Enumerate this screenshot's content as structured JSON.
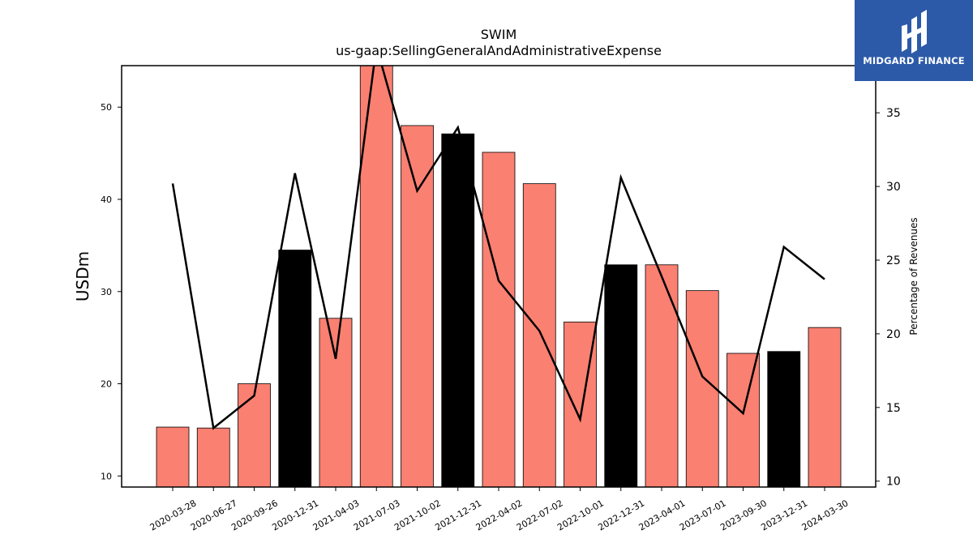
{
  "chart_data": {
    "type": "bar",
    "title": "SWIM",
    "subtitle": "us-gaap:SellingGeneralAndAdministrativeExpense",
    "ylabel": "USDm",
    "y2label": "Percentage of Revenues",
    "ylim": [
      8.8,
      54.5
    ],
    "y2lim": [
      9.6,
      38.2
    ],
    "yticks": [
      10,
      20,
      30,
      40,
      50
    ],
    "y2ticks": [
      10,
      15,
      20,
      25,
      30,
      35
    ],
    "categories": [
      "2020-03-28",
      "2020-06-27",
      "2020-09-26",
      "2020-12-31",
      "2021-04-03",
      "2021-07-03",
      "2021-10-02",
      "2021-12-31",
      "2022-04-02",
      "2022-07-02",
      "2022-10-01",
      "2022-12-31",
      "2023-04-01",
      "2023-07-01",
      "2023-09-30",
      "2023-12-31",
      "2024-03-30"
    ],
    "series": [
      {
        "type": "bar",
        "values": [
          15.3,
          15.2,
          20.0,
          34.5,
          27.1,
          55.0,
          48.0,
          47.1,
          45.1,
          41.7,
          26.7,
          32.9,
          32.9,
          30.1,
          23.3,
          23.5,
          26.1
        ],
        "highlight_color": "#000000",
        "base_color": "#fa8072",
        "highlighted": [
          false,
          false,
          false,
          true,
          false,
          false,
          false,
          true,
          false,
          false,
          false,
          true,
          false,
          false,
          false,
          true,
          false
        ]
      },
      {
        "type": "line",
        "axis": "right",
        "color": "#000000",
        "values": [
          30.2,
          13.6,
          15.8,
          30.9,
          18.3,
          39.5,
          29.7,
          34.0,
          23.6,
          20.2,
          14.2,
          30.6,
          23.9,
          17.1,
          14.6,
          25.9,
          23.7
        ]
      }
    ],
    "grid": false
  },
  "logo": {
    "text": "MIDGARD FINANCE"
  }
}
